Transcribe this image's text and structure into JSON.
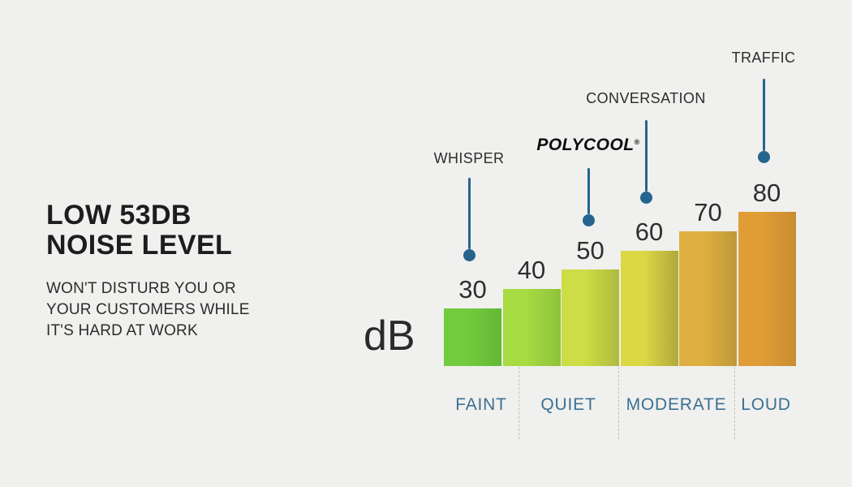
{
  "page": {
    "background_color": "#f0f0ee"
  },
  "left_panel": {
    "headline_line1": "LOW 53DB",
    "headline_line2": "NOISE LEVEL",
    "subtext_lines": [
      "WON'T DISTURB YOU OR",
      "YOUR CUSTOMERS WHILE",
      "IT'S HARD AT WORK"
    ]
  },
  "chart_data": {
    "type": "bar",
    "title": "",
    "unit_label": "dB",
    "xlabel": "",
    "ylabel": "dB",
    "ylim": [
      0,
      80
    ],
    "grid": false,
    "values": [
      30,
      40,
      50,
      60,
      70,
      80
    ],
    "bar_colors": [
      {
        "left": "#72cb3c",
        "right": "#63b835"
      },
      {
        "left": "#a6db41",
        "right": "#8ec23c"
      },
      {
        "left": "#ccdd45",
        "right": "#afba3e"
      },
      {
        "left": "#dbd844",
        "right": "#b1a83c"
      },
      {
        "left": "#dfb041",
        "right": "#bf9839"
      },
      {
        "left": "#e09d35",
        "right": "#c98d32"
      }
    ],
    "value_label_color": "#2e2e2e",
    "categories": [
      "FAINT",
      "QUIET",
      "MODERATE",
      "LOUD"
    ],
    "category_label_color": "#3c7092",
    "annotations": [
      {
        "label": "WHISPER",
        "target_value": 30,
        "is_logo": false
      },
      {
        "label": "POLYCOOL",
        "registered_mark": "®",
        "target_value": 50,
        "is_logo": true
      },
      {
        "label": "CONVERSATION",
        "target_value": 60,
        "is_logo": false
      },
      {
        "label": "TRAFFIC",
        "target_value": 80,
        "is_logo": false
      }
    ],
    "pin_color": "#26648e"
  }
}
